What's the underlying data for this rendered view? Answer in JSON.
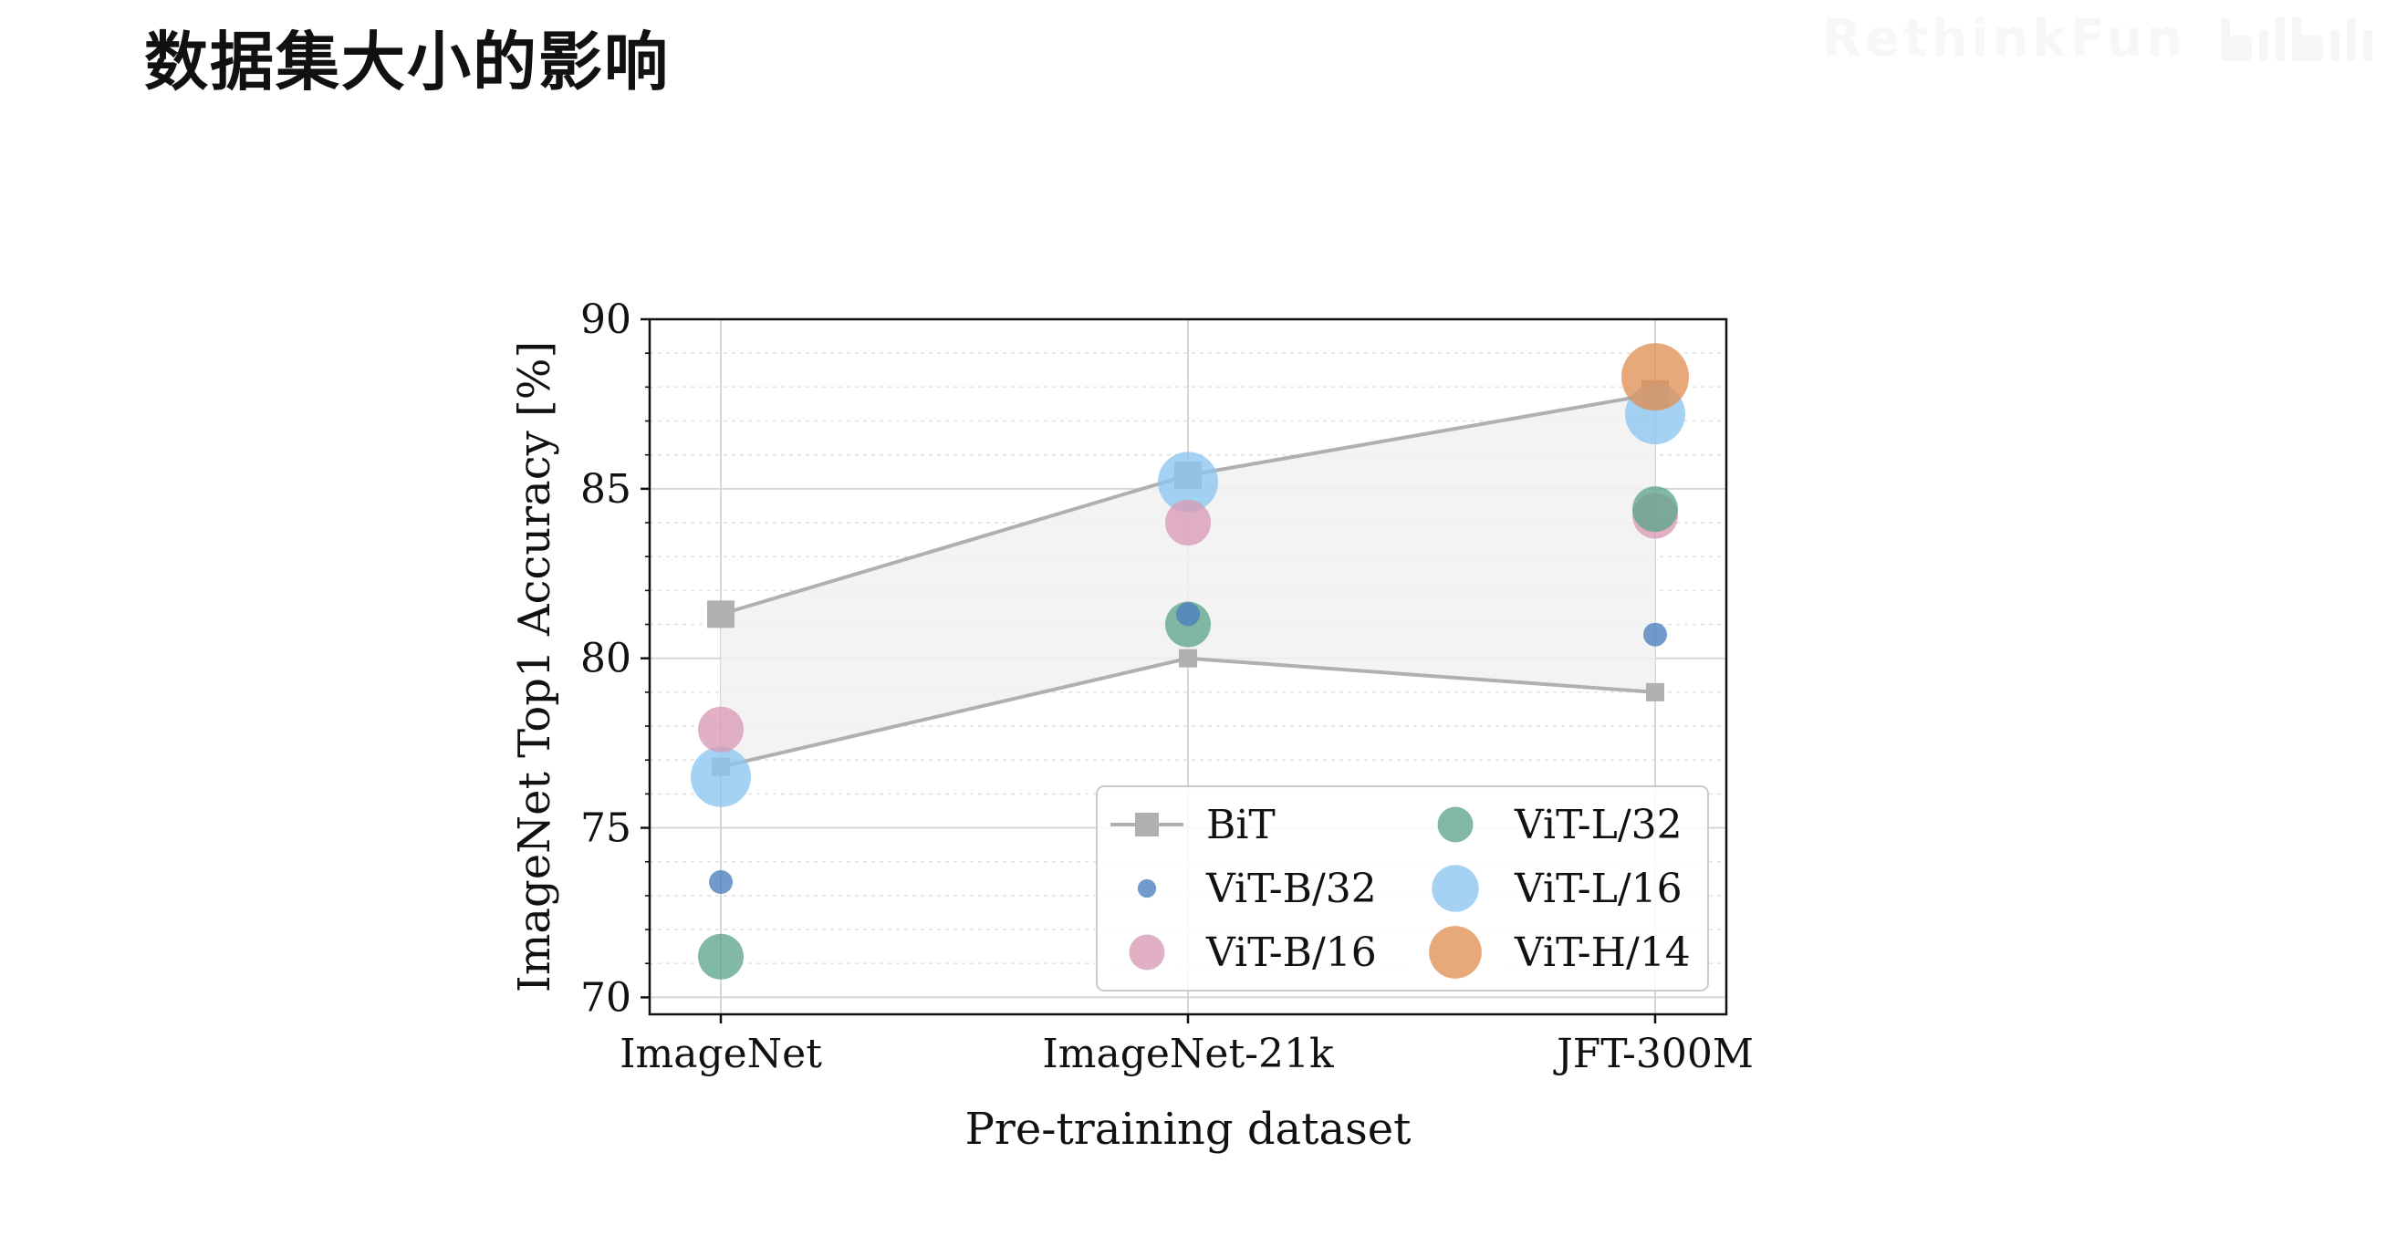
{
  "slide": {
    "title": "数据集大小的影响"
  },
  "watermark": {
    "text": "RethinkFun",
    "logo": "bilibili-logo"
  },
  "chart_data": {
    "type": "scatter",
    "title": "",
    "xlabel": "Pre-training dataset",
    "ylabel": "ImageNet Top1 Accuracy [%]",
    "categories": [
      "ImageNet",
      "ImageNet-21k",
      "JFT-300M"
    ],
    "ylim": [
      69.5,
      90
    ],
    "yticks": [
      70,
      75,
      80,
      85,
      90
    ],
    "grid": true,
    "legend_position": "lower-right",
    "legend_columns": 2,
    "bit_band": {
      "name": "BiT",
      "upper": [
        81.3,
        85.4,
        87.8
      ],
      "lower": [
        76.8,
        80.0,
        79.0
      ],
      "color": "#b0b0b0",
      "fill": "#f1f1f1"
    },
    "series": [
      {
        "name": "ViT-B/32",
        "color": "#4a7fbe",
        "size": "small",
        "values": [
          73.4,
          81.3,
          80.7
        ]
      },
      {
        "name": "ViT-B/16",
        "color": "#d99ab5",
        "size": "medium",
        "values": [
          77.9,
          84.0,
          84.2
        ]
      },
      {
        "name": "ViT-L/32",
        "color": "#5ea58a",
        "size": "medium",
        "values": [
          71.2,
          81.0,
          84.4
        ]
      },
      {
        "name": "ViT-L/16",
        "color": "#8cc4f0",
        "size": "large",
        "values": [
          76.5,
          85.2,
          87.2
        ]
      },
      {
        "name": "ViT-H/14",
        "color": "#e08f55",
        "size": "xlarge",
        "values": [
          null,
          null,
          88.3
        ]
      }
    ],
    "legend": [
      "BiT",
      "ViT-B/32",
      "ViT-B/16",
      "ViT-L/32",
      "ViT-L/16",
      "ViT-H/14"
    ]
  }
}
